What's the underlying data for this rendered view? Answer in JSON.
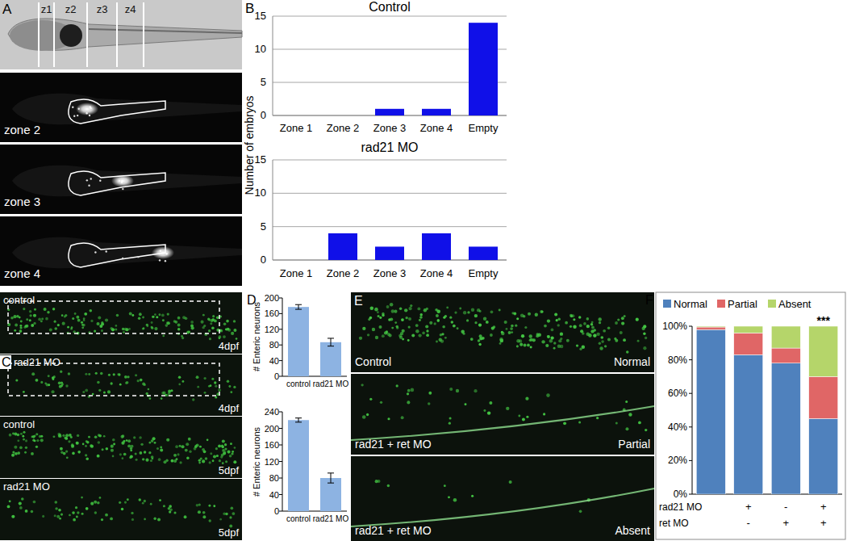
{
  "panel_labels": [
    "A",
    "B",
    "C",
    "D",
    "E",
    "F"
  ],
  "images": {
    "fish_zones": [
      "z1",
      "z2",
      "z3",
      "z4"
    ],
    "zone_panels": [
      "zone 2",
      "zone 3",
      "zone 4"
    ],
    "c_panels": [
      {
        "label": "control",
        "stage": "4dpf"
      },
      {
        "label": "rad21 MO",
        "stage": "4dpf"
      },
      {
        "label": "control",
        "stage": "5dpf"
      },
      {
        "label": "rad21 MO",
        "stage": "5dpf"
      }
    ],
    "e_panels": [
      {
        "label": "Control",
        "class": "Normal"
      },
      {
        "label": "rad21 + ret MO",
        "class": "Partial"
      },
      {
        "label": "rad21 + ret MO",
        "class": "Absent"
      }
    ]
  },
  "chart_data": [
    {
      "type": "bar",
      "title": "Control",
      "categories": [
        "Zone 1",
        "Zone 2",
        "Zone 3",
        "Zone 4",
        "Empty"
      ],
      "values": [
        0,
        0,
        1,
        1,
        14
      ],
      "color": "#1010e8",
      "ylim": [
        0,
        15
      ],
      "yticks": [
        0,
        5,
        10,
        15
      ],
      "grid": true,
      "y_label": "Number of embryos"
    },
    {
      "type": "bar",
      "title": "rad21 MO",
      "categories": [
        "Zone 1",
        "Zone 2",
        "Zone 3",
        "Zone 4",
        "Empty"
      ],
      "values": [
        0,
        4,
        2,
        4,
        2
      ],
      "color": "#1010e8",
      "ylim": [
        0,
        15
      ],
      "yticks": [
        0,
        5,
        10,
        15
      ],
      "grid": true
    },
    {
      "type": "bar",
      "categories": [
        "control",
        "rad21 MO"
      ],
      "values": [
        177,
        87
      ],
      "errors": [
        6,
        10
      ],
      "color": "#8db3e2",
      "ylim": [
        0,
        200
      ],
      "yticks": [
        0,
        40,
        80,
        120,
        160,
        200
      ],
      "grid": false,
      "y_label": "# Enteric neurons"
    },
    {
      "type": "bar",
      "categories": [
        "control",
        "rad21 MO"
      ],
      "values": [
        220,
        80
      ],
      "errors": [
        5,
        12
      ],
      "color": "#8db3e2",
      "ylim": [
        0,
        240
      ],
      "yticks": [
        0,
        40,
        80,
        120,
        160,
        200,
        240
      ],
      "grid": false,
      "y_label": "# Enteric neurons"
    },
    {
      "type": "bar",
      "stacked": true,
      "legend": "top",
      "grid": false,
      "categories": [
        null,
        null,
        null,
        null
      ],
      "series": [
        {
          "name": "Normal",
          "color": "#4f81bd",
          "values": [
            98,
            83,
            78,
            45
          ]
        },
        {
          "name": "Partial",
          "color": "#e06666",
          "values": [
            1.5,
            13,
            9,
            25
          ]
        },
        {
          "name": "Absent",
          "color": "#b5d56a",
          "values": [
            0.5,
            4,
            13,
            30
          ]
        }
      ],
      "ylim": [
        0,
        100
      ],
      "yticks": [
        {
          "value": 0,
          "label": "0%"
        },
        {
          "value": 20,
          "label": "20%"
        },
        {
          "value": 40,
          "label": "40%"
        },
        {
          "value": 60,
          "label": "60%"
        },
        {
          "value": 80,
          "label": "80%"
        },
        {
          "value": 100,
          "label": "100%"
        }
      ],
      "annotations": [
        null,
        null,
        null,
        "***"
      ],
      "x_table": [
        {
          "label": "rad21 MO",
          "values": [
            null,
            "+",
            "-",
            "+"
          ]
        },
        {
          "label": "ret MO",
          "values": [
            null,
            "-",
            "+",
            "+"
          ]
        }
      ]
    }
  ]
}
